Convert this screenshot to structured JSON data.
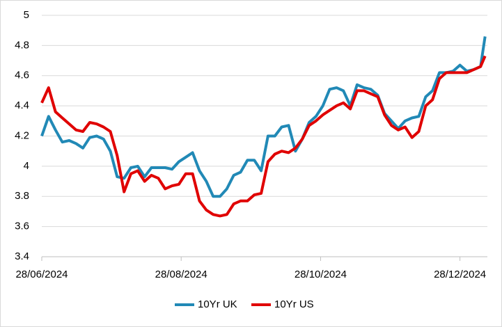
{
  "chart_data": {
    "type": "line",
    "x": [
      "28/06/2024",
      "01/07/2024",
      "04/07/2024",
      "07/07/2024",
      "10/07/2024",
      "13/07/2024",
      "16/07/2024",
      "19/07/2024",
      "22/07/2024",
      "25/07/2024",
      "28/07/2024",
      "31/07/2024",
      "03/08/2024",
      "06/08/2024",
      "09/08/2024",
      "12/08/2024",
      "15/08/2024",
      "18/08/2024",
      "21/08/2024",
      "24/08/2024",
      "27/08/2024",
      "30/08/2024",
      "02/09/2024",
      "05/09/2024",
      "08/09/2024",
      "11/09/2024",
      "14/09/2024",
      "17/09/2024",
      "20/09/2024",
      "23/09/2024",
      "26/09/2024",
      "29/09/2024",
      "02/10/2024",
      "05/10/2024",
      "08/10/2024",
      "11/10/2024",
      "14/10/2024",
      "17/10/2024",
      "20/10/2024",
      "23/10/2024",
      "26/10/2024",
      "29/10/2024",
      "01/11/2024",
      "04/11/2024",
      "07/11/2024",
      "10/11/2024",
      "13/11/2024",
      "16/11/2024",
      "19/11/2024",
      "22/11/2024",
      "25/11/2024",
      "28/11/2024",
      "01/12/2024",
      "04/12/2024",
      "07/12/2024",
      "10/12/2024",
      "13/12/2024",
      "16/12/2024",
      "19/12/2024",
      "22/12/2024",
      "25/12/2024",
      "28/12/2024",
      "31/12/2024",
      "03/01/2025",
      "06/01/2025",
      "08/01/2025"
    ],
    "series": [
      {
        "name": "10Yr UK",
        "color": "#2189b6",
        "values": [
          4.2,
          4.33,
          4.24,
          4.16,
          4.17,
          4.15,
          4.12,
          4.19,
          4.2,
          4.18,
          4.1,
          3.93,
          3.92,
          3.99,
          4.0,
          3.93,
          3.99,
          3.99,
          3.99,
          3.98,
          4.03,
          4.06,
          4.09,
          3.97,
          3.9,
          3.8,
          3.8,
          3.85,
          3.94,
          3.96,
          4.04,
          4.04,
          3.97,
          4.2,
          4.2,
          4.26,
          4.27,
          4.1,
          4.18,
          4.29,
          4.33,
          4.4,
          4.51,
          4.52,
          4.5,
          4.4,
          4.54,
          4.52,
          4.51,
          4.47,
          4.35,
          4.3,
          4.25,
          4.3,
          4.32,
          4.33,
          4.46,
          4.5,
          4.62,
          4.62,
          4.63,
          4.67,
          4.63,
          4.64,
          4.66,
          4.86
        ]
      },
      {
        "name": "10Yr US",
        "color": "#e00000",
        "values": [
          4.42,
          4.52,
          4.36,
          4.32,
          4.28,
          4.24,
          4.23,
          4.29,
          4.28,
          4.26,
          4.23,
          4.07,
          3.83,
          3.95,
          3.97,
          3.9,
          3.94,
          3.92,
          3.85,
          3.87,
          3.88,
          3.95,
          3.95,
          3.77,
          3.71,
          3.68,
          3.67,
          3.68,
          3.75,
          3.77,
          3.77,
          3.81,
          3.82,
          4.03,
          4.08,
          4.1,
          4.09,
          4.12,
          4.18,
          4.27,
          4.3,
          4.34,
          4.37,
          4.4,
          4.42,
          4.38,
          4.5,
          4.5,
          4.48,
          4.46,
          4.34,
          4.27,
          4.24,
          4.26,
          4.19,
          4.23,
          4.4,
          4.44,
          4.58,
          4.62,
          4.62,
          4.62,
          4.62,
          4.64,
          4.66,
          4.73
        ]
      }
    ],
    "xlim": [
      "28/06/2024",
      "09/01/2025"
    ],
    "xticks": [
      "28/06/2024",
      "28/08/2024",
      "28/10/2024",
      "28/12/2024"
    ],
    "ylim": [
      3.4,
      5
    ],
    "yticks": [
      3.4,
      3.6,
      3.8,
      4,
      4.2,
      4.4,
      4.6,
      4.8,
      5
    ],
    "grid": true,
    "legend": "bottom"
  }
}
